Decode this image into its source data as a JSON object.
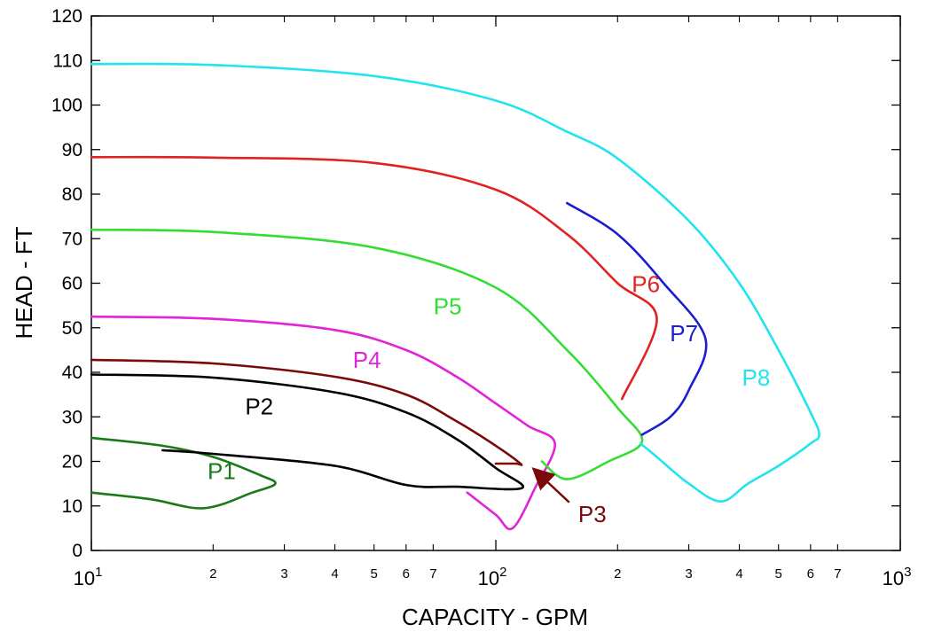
{
  "chart_data": {
    "type": "line",
    "title": "",
    "xlabel": "CAPACITY - GPM",
    "ylabel": "HEAD - FT",
    "x_scale": "log",
    "xlim": [
      10,
      1000
    ],
    "ylim": [
      0,
      120
    ],
    "grid": false,
    "legend": "none",
    "y_ticks": [
      "0",
      "10",
      "20",
      "30",
      "40",
      "50",
      "60",
      "70",
      "80",
      "90",
      "100",
      "110",
      "120"
    ],
    "x_major_ticks": [
      {
        "value": 10,
        "base": "10",
        "exp": "1"
      },
      {
        "value": 100,
        "base": "10",
        "exp": "2"
      },
      {
        "value": 1000,
        "base": "10",
        "exp": "3"
      }
    ],
    "x_minor_ticks": [
      {
        "value": 20,
        "label": "2"
      },
      {
        "value": 30,
        "label": "3"
      },
      {
        "value": 40,
        "label": "4"
      },
      {
        "value": 50,
        "label": "5"
      },
      {
        "value": 60,
        "label": "6"
      },
      {
        "value": 70,
        "label": "7"
      },
      {
        "value": 200,
        "label": "2"
      },
      {
        "value": 300,
        "label": "3"
      },
      {
        "value": 400,
        "label": "4"
      },
      {
        "value": 500,
        "label": "5"
      },
      {
        "value": 600,
        "label": "6"
      },
      {
        "value": 700,
        "label": "7"
      }
    ],
    "series": [
      {
        "name": "P1",
        "color": "#1a7a1a",
        "label_at": [
          21,
          16
        ],
        "x": [
          10,
          15,
          20,
          26,
          28.5,
          25,
          19,
          14,
          10
        ],
        "y": [
          25.3,
          23.5,
          21,
          17,
          15,
          13,
          9.5,
          11.5,
          13
        ]
      },
      {
        "name": "P2",
        "color": "#000000",
        "label_at": [
          26,
          30.5
        ],
        "x": [
          10,
          20,
          40,
          60,
          80,
          100,
          116,
          80,
          60,
          40,
          20,
          15
        ],
        "y": [
          39.5,
          38.8,
          35.5,
          31,
          25,
          18.5,
          14,
          14.3,
          14.7,
          19,
          21.7,
          22.5
        ]
      },
      {
        "name": "P3",
        "color": "#7a0a0a",
        "label_at": [
          168,
          9
        ],
        "x": [
          10,
          20,
          40,
          60,
          80,
          100,
          115,
          112,
          100
        ],
        "y": [
          42.8,
          42,
          39,
          35,
          29,
          23.5,
          19.5,
          19.5,
          19.5
        ]
      },
      {
        "name": "P4",
        "color": "#e024d8",
        "label_at": [
          48,
          41
        ],
        "x": [
          10,
          20,
          40,
          60,
          80,
          100,
          120,
          140,
          125,
          110,
          100,
          85
        ],
        "y": [
          52.5,
          52,
          49.5,
          45,
          39,
          33,
          28,
          24,
          14,
          5,
          8,
          13
        ]
      },
      {
        "name": "P5",
        "color": "#33dd33",
        "label_at": [
          76,
          53
        ],
        "x": [
          10,
          20,
          50,
          100,
          150,
          200,
          230,
          190,
          150,
          130
        ],
        "y": [
          72,
          71.5,
          68,
          59,
          45,
          32,
          24.5,
          20,
          16,
          20
        ]
      },
      {
        "name": "P6",
        "color": "#e02222",
        "label_at": [
          235,
          58
        ],
        "x": [
          10,
          20,
          50,
          100,
          150,
          200,
          250,
          205
        ],
        "y": [
          88.3,
          88.2,
          87,
          81,
          71,
          60,
          52,
          34
        ]
      },
      {
        "name": "P7",
        "color": "#1c1cd0",
        "label_at": [
          292,
          47
        ],
        "x": [
          150,
          200,
          260,
          330,
          300,
          270,
          230
        ],
        "y": [
          78,
          71,
          60,
          47.5,
          36,
          30,
          26
        ]
      },
      {
        "name": "P8",
        "color": "#22e4ee",
        "label_at": [
          440,
          37
        ],
        "x": [
          10,
          20,
          50,
          100,
          150,
          200,
          300,
          400,
          500,
          600,
          630,
          600,
          500,
          420,
          360,
          300,
          250,
          228
        ],
        "y": [
          109.2,
          109,
          106.5,
          101,
          94,
          88,
          74,
          60,
          45,
          31,
          26,
          24,
          19,
          15,
          11,
          15,
          21,
          24
        ]
      }
    ],
    "annotations": [
      {
        "label": "P3",
        "from": [
          155,
          10
        ],
        "to": [
          125,
          18
        ],
        "color": "#7a0a0a"
      }
    ]
  }
}
